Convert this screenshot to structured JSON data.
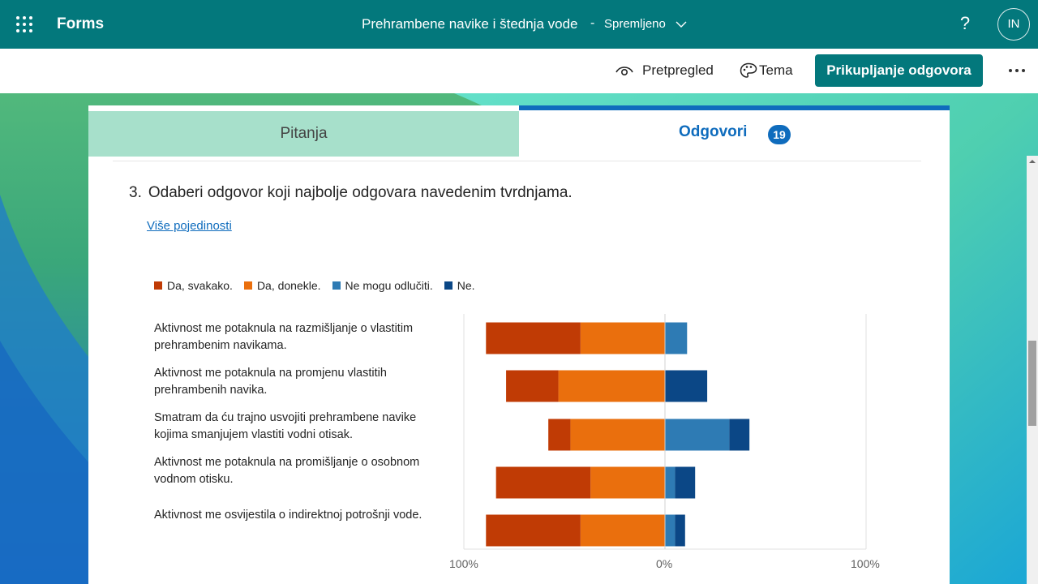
{
  "app": {
    "name": "Forms",
    "doc_title": "Prehrambene navike i štednja vode",
    "doc_sep": "-",
    "doc_status": "Spremljeno",
    "help": "?",
    "avatar_initials": "IN"
  },
  "commands": {
    "preview": "Pretpregled",
    "theme": "Tema",
    "collect": "Prikupljanje odgovora"
  },
  "tabs": {
    "questions": "Pitanja",
    "responses": "Odgovori",
    "responses_count": "19"
  },
  "question": {
    "number": "3.",
    "title": "Odaberi odgovor koji najbolje odgovara navedenim tvrdnjama.",
    "more_details": "Više pojedinosti"
  },
  "colors": {
    "brand": "#03787c",
    "accent": "#0f6cbd",
    "da_svakako": "#c03b05",
    "da_donekle": "#ea6f0d",
    "ne_mogu": "#2e7bb4",
    "ne": "#0b4786"
  },
  "chart_data": {
    "type": "bar",
    "orientation": "horizontal",
    "stacked": "diverging",
    "legend_position": "top-left",
    "legend": [
      "Da, svakako.",
      "Da, donekle.",
      "Ne mogu odlučiti.",
      "Ne."
    ],
    "categories": [
      "Aktivnost me potaknula na razmišljanje o vlastitim prehrambenim navikama.",
      "Aktivnost me potaknula na promjenu  vlastitih prehrambenih navika.",
      "Smatram da ću trajno usvojiti prehrambene navike kojima smanjujem vlastiti vodni otisak.",
      "Aktivnost me potaknula na promišljanje o osobnom vodnom otisku.",
      "Aktivnost me osvijestila o indirektnoj potrošnji vode."
    ],
    "series": [
      {
        "name": "Da, svakako.",
        "values": [
          47,
          26,
          11,
          47,
          47
        ]
      },
      {
        "name": "Da, donekle.",
        "values": [
          42,
          53,
          47,
          37,
          42
        ]
      },
      {
        "name": "Ne mogu odlučiti.",
        "values": [
          11,
          0,
          32,
          5,
          5
        ]
      },
      {
        "name": "Ne.",
        "values": [
          0,
          21,
          10,
          10,
          5
        ]
      }
    ],
    "x_ticks": [
      "100%",
      "0%",
      "100%"
    ],
    "xlim": [
      -100,
      100
    ],
    "grid": false
  }
}
